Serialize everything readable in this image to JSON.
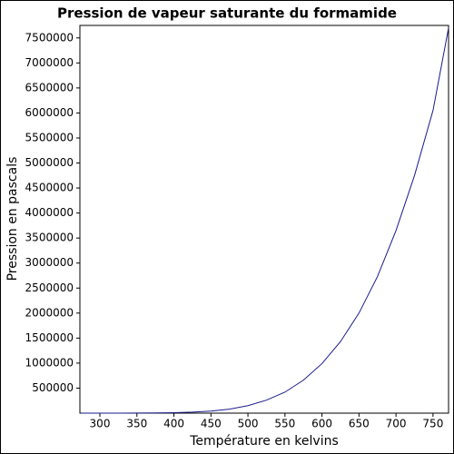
{
  "chart_data": {
    "type": "line",
    "title": "Pression de vapeur saturante du formamide",
    "x_label": "Température en kelvins",
    "y_label": "Pression en pascals",
    "x": [
      275,
      300,
      325,
      350,
      375,
      400,
      425,
      450,
      475,
      500,
      525,
      550,
      575,
      600,
      625,
      650,
      675,
      700,
      725,
      750,
      771
    ],
    "series": [
      {
        "color": "#1a1a8c",
        "values": [
          15,
          80,
          340,
          1200,
          3500,
          8800,
          20000,
          42000,
          80000,
          150000,
          260000,
          420000,
          660000,
          990000,
          1430000,
          2000000,
          2730000,
          3650000,
          4750000,
          6050000,
          7700000
        ]
      }
    ],
    "xlim": [
      273,
      771
    ],
    "ylim": [
      0,
      7750000
    ],
    "xticks": [
      300,
      350,
      400,
      450,
      500,
      550,
      600,
      650,
      700,
      750
    ],
    "yticks": [
      500000,
      1000000,
      1500000,
      2000000,
      2500000,
      3000000,
      3500000,
      4000000,
      4500000,
      5000000,
      5500000,
      6000000,
      6500000,
      7000000,
      7500000
    ],
    "grid": false
  }
}
